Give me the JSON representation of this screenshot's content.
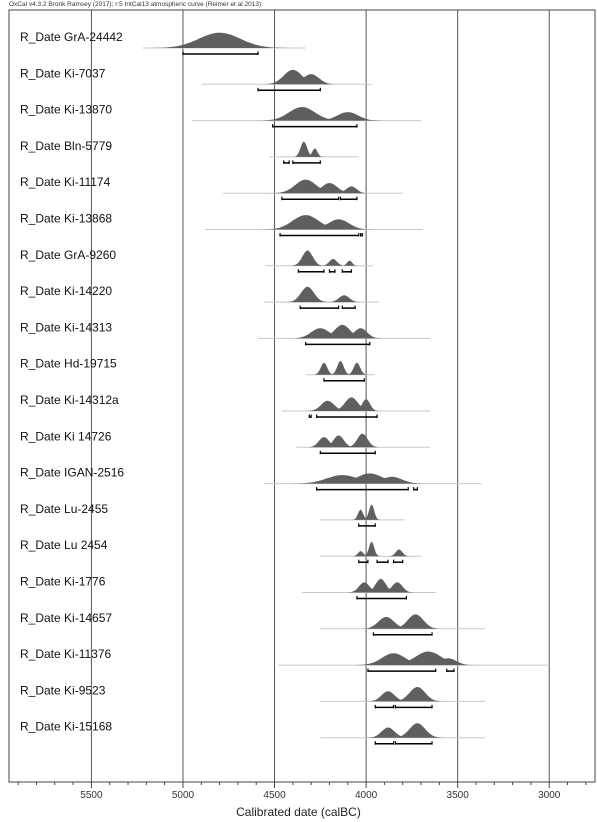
{
  "header_text": "OxCal v4.3.2 Bronk Ramsey (2017); r:5 IntCal13 atmospheric curve (Reimer et al 2013)",
  "chart_data": {
    "type": "multiple calibrated date distributions",
    "xlabel": "Calibrated date (calBC)",
    "xlim": [
      5950,
      2750
    ],
    "x_ticks": [
      5500,
      5000,
      4500,
      4000,
      3500,
      3000
    ],
    "x_minor_step": 100,
    "grid": "vertical lines at 500-year ticks",
    "colors": {
      "distribution": "#5f5f5f",
      "outline": "#c8c8c8",
      "range": "#000000",
      "grid": "#555555"
    },
    "series": [
      {
        "name": "R_Date GrA-24442",
        "extent": [
          5220,
          4330
        ],
        "peaks": [
          [
            4800,
            0.9,
            160
          ]
        ],
        "ranges": [
          [
            5000,
            4590
          ]
        ]
      },
      {
        "name": "R_Date Ki-7037",
        "extent": [
          4900,
          3970
        ],
        "peaks": [
          [
            4400,
            0.85,
            70
          ],
          [
            4300,
            0.6,
            60
          ]
        ],
        "ranges": [
          [
            4590,
            4250
          ]
        ]
      },
      {
        "name": "R_Date Ki-13870",
        "extent": [
          4950,
          3700
        ],
        "peaks": [
          [
            4350,
            0.8,
            100
          ],
          [
            4100,
            0.5,
            80
          ]
        ],
        "ranges": [
          [
            4510,
            4050
          ]
        ]
      },
      {
        "name": "R_Date Bln-5779",
        "extent": [
          4530,
          4040
        ],
        "peaks": [
          [
            4340,
            0.9,
            25
          ],
          [
            4280,
            0.5,
            20
          ]
        ],
        "ranges": [
          [
            4450,
            4420
          ],
          [
            4400,
            4250
          ]
        ]
      },
      {
        "name": "R_Date Ki-11174",
        "extent": [
          4780,
          3800
        ],
        "peaks": [
          [
            4330,
            0.8,
            80
          ],
          [
            4200,
            0.6,
            60
          ],
          [
            4080,
            0.4,
            40
          ]
        ],
        "ranges": [
          [
            4460,
            4150
          ],
          [
            4140,
            4050
          ]
        ]
      },
      {
        "name": "R_Date Ki-13868",
        "extent": [
          4880,
          3690
        ],
        "peaks": [
          [
            4330,
            0.85,
            100
          ],
          [
            4150,
            0.6,
            80
          ]
        ],
        "ranges": [
          [
            4470,
            4040
          ],
          [
            4030,
            4020
          ]
        ]
      },
      {
        "name": "R_Date GrA-9260",
        "extent": [
          4550,
          3960
        ],
        "peaks": [
          [
            4320,
            0.9,
            40
          ],
          [
            4180,
            0.4,
            30
          ],
          [
            4090,
            0.3,
            20
          ]
        ],
        "ranges": [
          [
            4370,
            4230
          ],
          [
            4200,
            4170
          ],
          [
            4130,
            4080
          ]
        ]
      },
      {
        "name": "R_Date Ki-14220",
        "extent": [
          4560,
          3930
        ],
        "peaks": [
          [
            4320,
            0.9,
            50
          ],
          [
            4120,
            0.4,
            40
          ]
        ],
        "ranges": [
          [
            4360,
            4150
          ],
          [
            4130,
            4060
          ]
        ]
      },
      {
        "name": "R_Date Ki-14313",
        "extent": [
          4590,
          3650
        ],
        "peaks": [
          [
            4250,
            0.6,
            70
          ],
          [
            4130,
            0.8,
            60
          ],
          [
            4030,
            0.6,
            50
          ]
        ],
        "ranges": [
          [
            4330,
            3980
          ]
        ]
      },
      {
        "name": "R_Date Hd-19715",
        "extent": [
          4330,
          3950
        ],
        "peaks": [
          [
            4230,
            0.7,
            25
          ],
          [
            4140,
            0.8,
            25
          ],
          [
            4050,
            0.7,
            25
          ]
        ],
        "ranges": [
          [
            4230,
            4010
          ]
        ]
      },
      {
        "name": "R_Date Ki-14312a",
        "extent": [
          4460,
          3650
        ],
        "peaks": [
          [
            4210,
            0.6,
            50
          ],
          [
            4080,
            0.8,
            50
          ],
          [
            4000,
            0.7,
            30
          ]
        ],
        "ranges": [
          [
            4310,
            4300
          ],
          [
            4270,
            3940
          ]
        ]
      },
      {
        "name": "R_Date Ki 14726",
        "extent": [
          4380,
          3650
        ],
        "peaks": [
          [
            4230,
            0.6,
            40
          ],
          [
            4150,
            0.7,
            40
          ],
          [
            4020,
            0.8,
            40
          ]
        ],
        "ranges": [
          [
            4250,
            3950
          ]
        ]
      },
      {
        "name": "R_Date IGAN-2516",
        "extent": [
          4560,
          3370
        ],
        "peaks": [
          [
            4130,
            0.5,
            120
          ],
          [
            3980,
            0.6,
            100
          ],
          [
            3860,
            0.4,
            80
          ]
        ],
        "ranges": [
          [
            4270,
            3770
          ],
          [
            3740,
            3720
          ]
        ]
      },
      {
        "name": "R_Date Lu-2455",
        "extent": [
          4250,
          3790
        ],
        "peaks": [
          [
            4030,
            0.6,
            20
          ],
          [
            3970,
            0.9,
            20
          ]
        ],
        "ranges": [
          [
            4040,
            3950
          ]
        ]
      },
      {
        "name": "R_Date Lu 2454",
        "extent": [
          4250,
          3700
        ],
        "peaks": [
          [
            3970,
            0.85,
            20
          ],
          [
            3820,
            0.4,
            25
          ],
          [
            4030,
            0.3,
            20
          ]
        ],
        "ranges": [
          [
            4040,
            3990
          ],
          [
            3940,
            3880
          ],
          [
            3850,
            3800
          ]
        ]
      },
      {
        "name": "R_Date Ki-1776",
        "extent": [
          4350,
          3620
        ],
        "peaks": [
          [
            4010,
            0.6,
            40
          ],
          [
            3920,
            0.8,
            40
          ],
          [
            3830,
            0.6,
            40
          ]
        ],
        "ranges": [
          [
            4050,
            3780
          ]
        ]
      },
      {
        "name": "R_Date Ki-14657",
        "extent": [
          4250,
          3350
        ],
        "peaks": [
          [
            3890,
            0.7,
            60
          ],
          [
            3730,
            0.85,
            60
          ]
        ],
        "ranges": [
          [
            3960,
            3640
          ]
        ]
      },
      {
        "name": "R_Date Ki-11376",
        "extent": [
          4480,
          3000
        ],
        "peaks": [
          [
            3850,
            0.7,
            90
          ],
          [
            3660,
            0.8,
            100
          ],
          [
            3550,
            0.4,
            60
          ]
        ],
        "ranges": [
          [
            3990,
            3620
          ],
          [
            3560,
            3520
          ]
        ]
      },
      {
        "name": "R_Date Ki-9523",
        "extent": [
          4250,
          3350
        ],
        "peaks": [
          [
            3880,
            0.6,
            50
          ],
          [
            3720,
            0.85,
            60
          ]
        ],
        "ranges": [
          [
            3950,
            3850
          ],
          [
            3840,
            3640
          ]
        ]
      },
      {
        "name": "R_Date Ki-15168",
        "extent": [
          4250,
          3350
        ],
        "peaks": [
          [
            3880,
            0.6,
            50
          ],
          [
            3720,
            0.85,
            60
          ]
        ],
        "ranges": [
          [
            3950,
            3850
          ],
          [
            3840,
            3640
          ]
        ]
      }
    ]
  }
}
